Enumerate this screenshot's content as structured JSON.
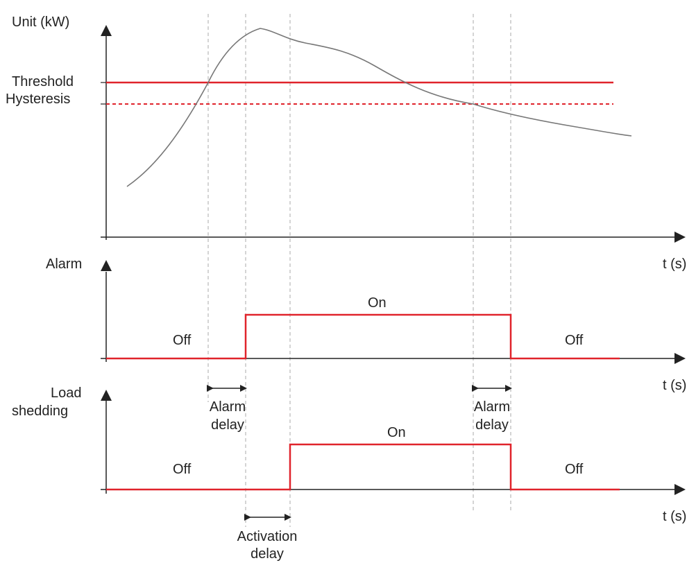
{
  "power_chart": {
    "y_axis_label": "Unit (kW)",
    "x_axis_label": "t (s)",
    "threshold_label": "Threshold",
    "hysteresis_label": "Hysteresis",
    "colors": {
      "threshold": "#e0232b",
      "curve": "#777777"
    }
  },
  "alarm_chart": {
    "y_axis_label": "Alarm",
    "x_axis_label": "t (s)",
    "off_left_label": "Off",
    "on_label": "On",
    "off_right_label": "Off"
  },
  "load_chart": {
    "y_axis_label_line1": "Load",
    "y_axis_label_line2": "shedding",
    "x_axis_label": "t (s)",
    "off_left_label": "Off",
    "on_label": "On",
    "off_right_label": "Off"
  },
  "delays": {
    "alarm_on_delay_line1": "Alarm",
    "alarm_on_delay_line2": "delay",
    "alarm_off_delay_line1": "Alarm",
    "alarm_off_delay_line2": "delay",
    "activation_delay_line1": "Activation",
    "activation_delay_line2": "delay"
  }
}
